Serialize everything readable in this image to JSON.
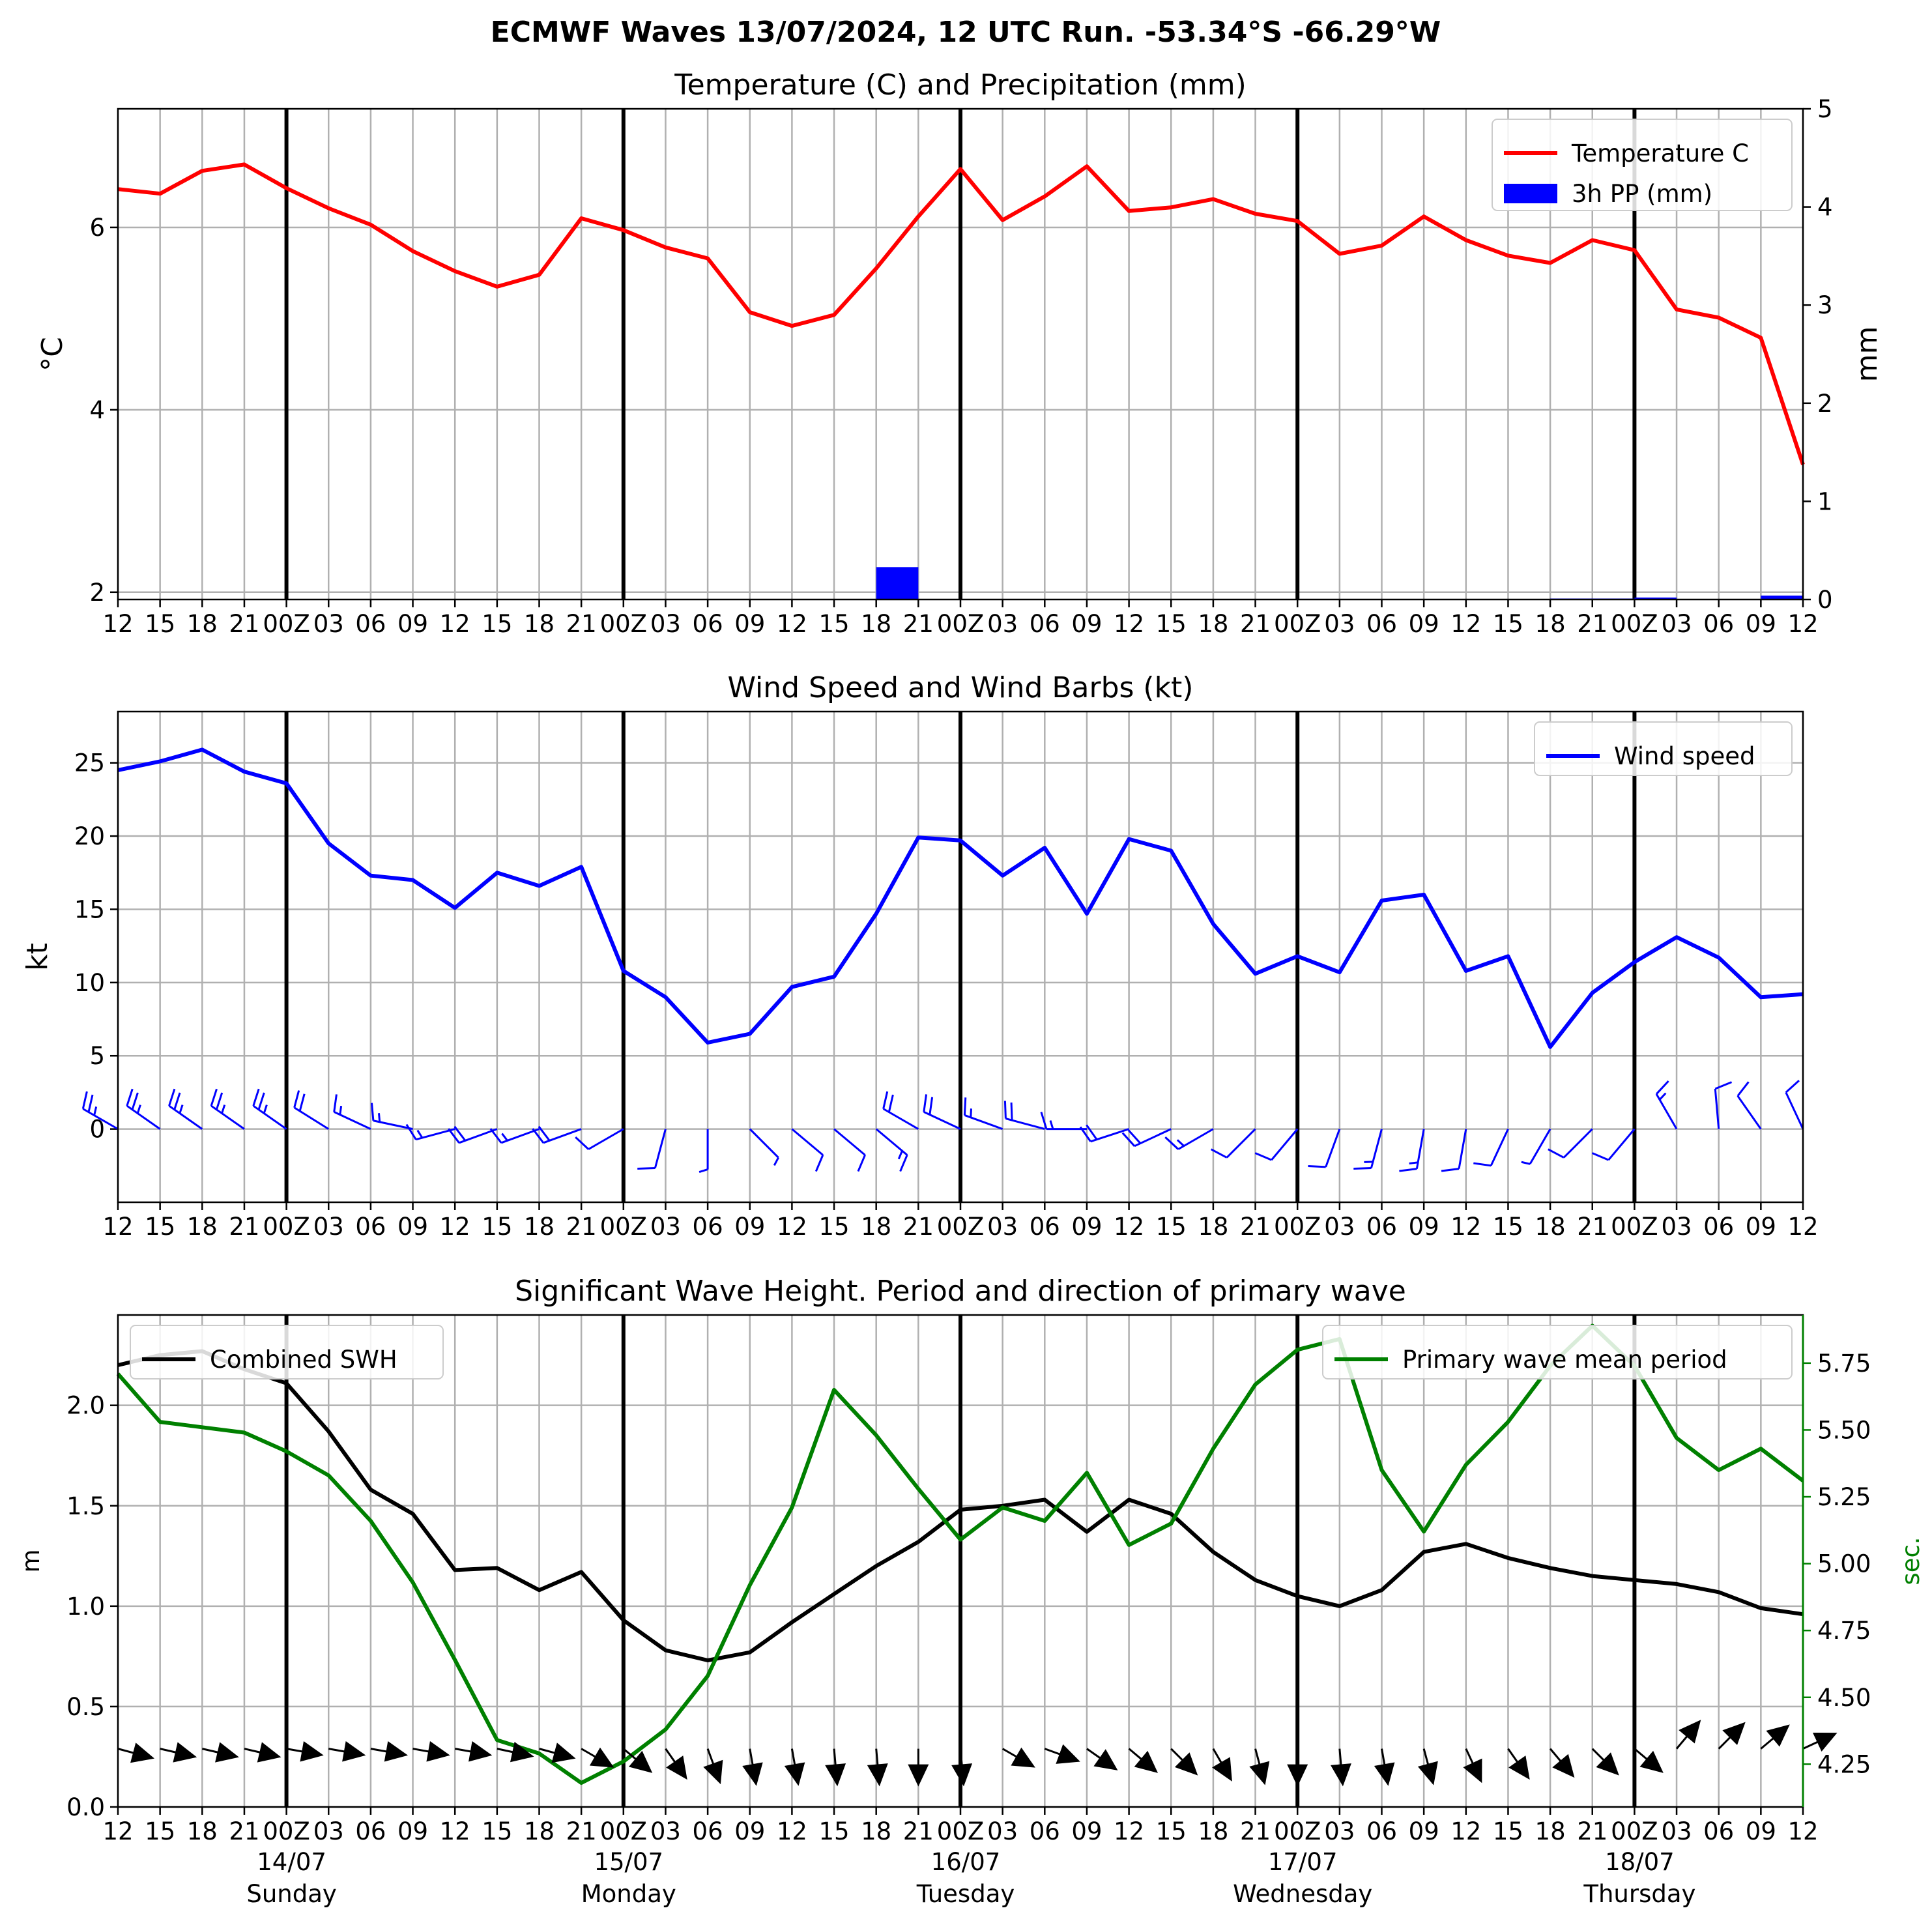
{
  "suptitle": "ECMWF Waves 13/07/2024, 12 UTC Run. -53.34°S -66.29°W",
  "x_tick_labels": [
    "12",
    "15",
    "18",
    "21",
    "00Z",
    "03",
    "06",
    "09",
    "12",
    "15",
    "18",
    "21",
    "00Z",
    "03",
    "06",
    "09",
    "12",
    "15",
    "18",
    "21",
    "00Z",
    "03",
    "06",
    "09",
    "12",
    "15",
    "18",
    "21",
    "00Z",
    "03",
    "06",
    "09",
    "12",
    "15",
    "18",
    "21",
    "00Z",
    "03",
    "06",
    "09",
    "12"
  ],
  "day_labels": [
    {
      "date": "14/07",
      "day": "Sunday"
    },
    {
      "date": "15/07",
      "day": "Monday"
    },
    {
      "date": "16/07",
      "day": "Tuesday"
    },
    {
      "date": "17/07",
      "day": "Wednesday"
    },
    {
      "date": "18/07",
      "day": "Thursday"
    }
  ],
  "colors": {
    "temperature": "#ff0000",
    "precip": "#0000ff",
    "wind": "#0000ff",
    "swh": "#000000",
    "period": "#008000",
    "barb": "#0000ff",
    "arrow": "#000000",
    "grid": "#b0b0b0"
  },
  "chart_data": [
    {
      "type": "line",
      "title": "Temperature (C) and Precipitation (mm)",
      "ylabel": "$^\\circ$C",
      "ylabel_display": "°C",
      "y2label": "mm",
      "ylim": [
        1.92,
        7.3
      ],
      "y2lim": [
        0,
        5
      ],
      "yticks": [
        "2",
        "4",
        "6"
      ],
      "y2ticks": [
        "0",
        "1",
        "2",
        "3",
        "4",
        "5"
      ],
      "legend": {
        "position": "upper right",
        "entries": [
          "Temperature C",
          "3h PP (mm)"
        ]
      },
      "series": [
        {
          "name": "Temperature C",
          "axis": "left",
          "values": [
            6.42,
            6.37,
            6.62,
            6.69,
            6.43,
            6.21,
            6.03,
            5.74,
            5.52,
            5.35,
            5.48,
            6.1,
            5.97,
            5.78,
            5.66,
            5.07,
            4.92,
            5.04,
            5.55,
            6.12,
            6.64,
            6.08,
            6.34,
            6.67,
            6.18,
            6.22,
            6.31,
            6.15,
            6.07,
            5.71,
            5.8,
            6.12,
            5.86,
            5.69,
            5.61,
            5.86,
            5.75,
            5.1,
            5.01,
            4.79,
            3.4
          ]
        },
        {
          "name": "3h PP (mm)",
          "axis": "right",
          "type": "bar",
          "values": [
            0,
            0,
            0,
            0,
            0,
            0,
            0,
            0,
            0,
            0,
            0,
            0,
            0,
            0,
            0,
            0,
            0,
            0,
            0,
            0.33,
            0,
            0,
            0,
            0,
            0,
            0,
            0,
            0,
            0,
            0,
            0,
            0,
            0,
            0,
            0,
            0.01,
            0.01,
            0.02,
            0,
            0,
            0.04
          ]
        }
      ]
    },
    {
      "type": "line",
      "title": "Wind Speed and Wind Barbs (kt)",
      "ylabel": "kt",
      "ylim": [
        -5,
        28.5
      ],
      "yticks": [
        "0",
        "5",
        "10",
        "15",
        "20",
        "25"
      ],
      "legend": {
        "position": "upper right",
        "entries": [
          "Wind speed"
        ]
      },
      "series": [
        {
          "name": "Wind speed",
          "values": [
            24.5,
            25.1,
            25.9,
            24.4,
            23.6,
            19.5,
            17.3,
            17.0,
            15.1,
            17.5,
            16.6,
            17.9,
            10.8,
            9.0,
            5.9,
            6.5,
            9.7,
            10.4,
            14.7,
            19.9,
            19.7,
            17.3,
            19.2,
            14.7,
            19.8,
            19.0,
            14.0,
            10.6,
            11.8,
            10.7,
            15.6,
            16.0,
            10.8,
            11.8,
            5.6,
            9.3,
            11.4,
            13.1,
            11.7,
            9.0,
            9.2
          ]
        },
        {
          "name": "barb direction (deg)",
          "values": [
            300,
            305,
            305,
            305,
            305,
            302,
            295,
            282,
            255,
            250,
            250,
            250,
            240,
            195,
            180,
            135,
            130,
            130,
            130,
            300,
            295,
            290,
            285,
            270,
            252,
            245,
            240,
            225,
            220,
            200,
            195,
            190,
            190,
            205,
            210,
            225,
            220,
            330,
            355,
            325,
            335
          ]
        }
      ]
    },
    {
      "type": "line",
      "title": "Significant Wave Height. Period and direction of primary wave",
      "ylabel": "m",
      "y2label": "sec.",
      "ylim": [
        0,
        2.45
      ],
      "y2lim": [
        4.09,
        5.93
      ],
      "yticks": [
        "0.0",
        "0.5",
        "1.0",
        "1.5",
        "2.0"
      ],
      "y2ticks": [
        "4.25",
        "4.50",
        "4.75",
        "5.00",
        "5.25",
        "5.50",
        "5.75"
      ],
      "legend": [
        {
          "position": "upper left",
          "entries": [
            "Combined SWH"
          ]
        },
        {
          "position": "upper right",
          "entries": [
            "Primary wave mean period"
          ]
        }
      ],
      "series": [
        {
          "name": "Combined SWH",
          "axis": "left",
          "values": [
            2.2,
            2.25,
            2.27,
            2.18,
            2.11,
            1.87,
            1.58,
            1.46,
            1.18,
            1.19,
            1.08,
            1.17,
            0.93,
            0.78,
            0.73,
            0.77,
            0.92,
            1.06,
            1.2,
            1.32,
            1.48,
            1.5,
            1.53,
            1.37,
            1.53,
            1.46,
            1.27,
            1.13,
            1.05,
            1.0,
            1.08,
            1.27,
            1.31,
            1.24,
            1.19,
            1.15,
            1.13,
            1.11,
            1.07,
            0.99,
            0.96
          ]
        },
        {
          "name": "Primary wave mean period",
          "axis": "right",
          "values": [
            5.71,
            5.53,
            5.51,
            5.49,
            5.42,
            5.33,
            5.16,
            4.93,
            4.64,
            4.34,
            4.29,
            4.18,
            4.26,
            4.38,
            4.58,
            4.92,
            5.21,
            5.65,
            5.48,
            5.28,
            5.09,
            5.21,
            5.16,
            5.34,
            5.07,
            5.15,
            5.43,
            5.67,
            5.8,
            5.84,
            5.35,
            5.12,
            5.37,
            5.53,
            5.74,
            5.89,
            5.74,
            5.47,
            5.35,
            5.43,
            5.31
          ]
        },
        {
          "name": "primary wave direction (deg)",
          "values": [
            285,
            283,
            283,
            283,
            280,
            280,
            280,
            280,
            280,
            282,
            285,
            300,
            310,
            325,
            340,
            350,
            350,
            355,
            355,
            0,
            355,
            300,
            290,
            305,
            310,
            315,
            330,
            345,
            0,
            355,
            350,
            345,
            335,
            325,
            320,
            315,
            310,
            220,
            225,
            230,
            245
          ]
        }
      ]
    }
  ]
}
